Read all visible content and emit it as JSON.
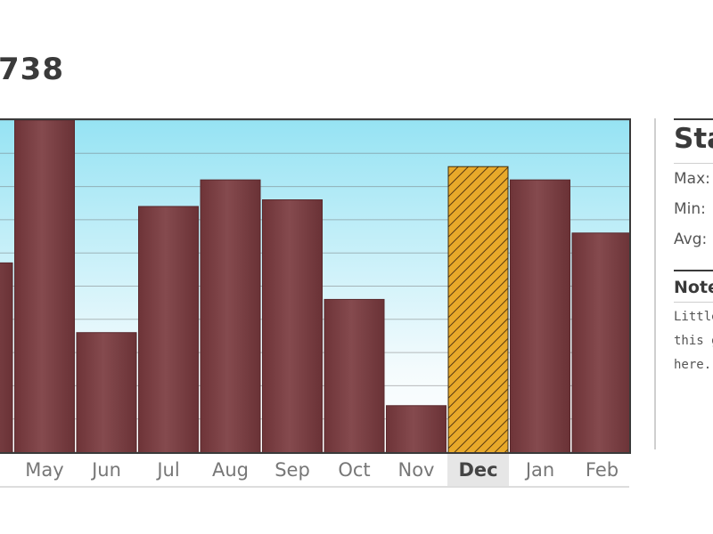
{
  "headline": "738",
  "chart_data": {
    "type": "bar",
    "categories": [
      "",
      "May",
      "Jun",
      "Jul",
      "Aug",
      "Sep",
      "Oct",
      "Nov",
      "Dec",
      "Jan",
      "Feb"
    ],
    "values": [
      57,
      100,
      36,
      74,
      82,
      76,
      46,
      14,
      86,
      82,
      66
    ],
    "highlighted_category": "Dec",
    "ylim": [
      0,
      100
    ],
    "grid": true,
    "colors": {
      "bar": "#7a3e42",
      "highlight": "#e8a92a",
      "highlight_hatch": "#5a3a10",
      "gridline": "#6b6b6b",
      "sky_top": "#96e3f3"
    }
  },
  "sidebar": {
    "stats_title": "Sta",
    "max_label": "Max:",
    "min_label": "Min:",
    "avg_label": "Avg:",
    "notes_title": "Note",
    "notes_lines": [
      "Little",
      "this g",
      "here."
    ]
  }
}
